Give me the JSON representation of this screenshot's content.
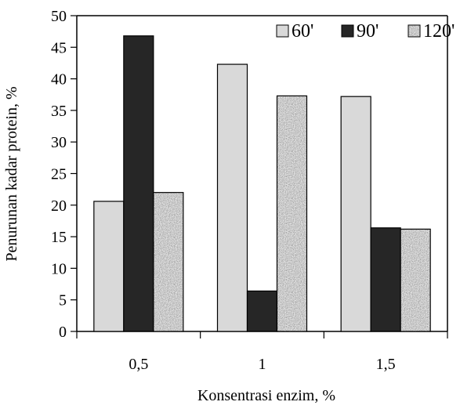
{
  "chart_data": {
    "type": "bar",
    "categories": [
      "0,5",
      "1",
      "1,5"
    ],
    "series": [
      {
        "name": "60'",
        "values": [
          20.6,
          42.3,
          37.2
        ],
        "color": "#d9d9d9",
        "pattern": "solid"
      },
      {
        "name": "90'",
        "values": [
          46.8,
          6.4,
          16.4
        ],
        "color": "#262626",
        "pattern": "solid"
      },
      {
        "name": "120'",
        "values": [
          22.0,
          37.3,
          16.2
        ],
        "color": "#9a9a9a",
        "pattern": "granite"
      }
    ],
    "title": "",
    "xlabel": "Konsentrasi enzim, %",
    "ylabel": "Penurunan kadar protein, %",
    "ylim": [
      0,
      50
    ],
    "yticks": [
      "0",
      "5",
      "10",
      "15",
      "20",
      "25",
      "30",
      "35",
      "40",
      "45",
      "50"
    ],
    "grid": false,
    "legend_position": "top-right"
  }
}
